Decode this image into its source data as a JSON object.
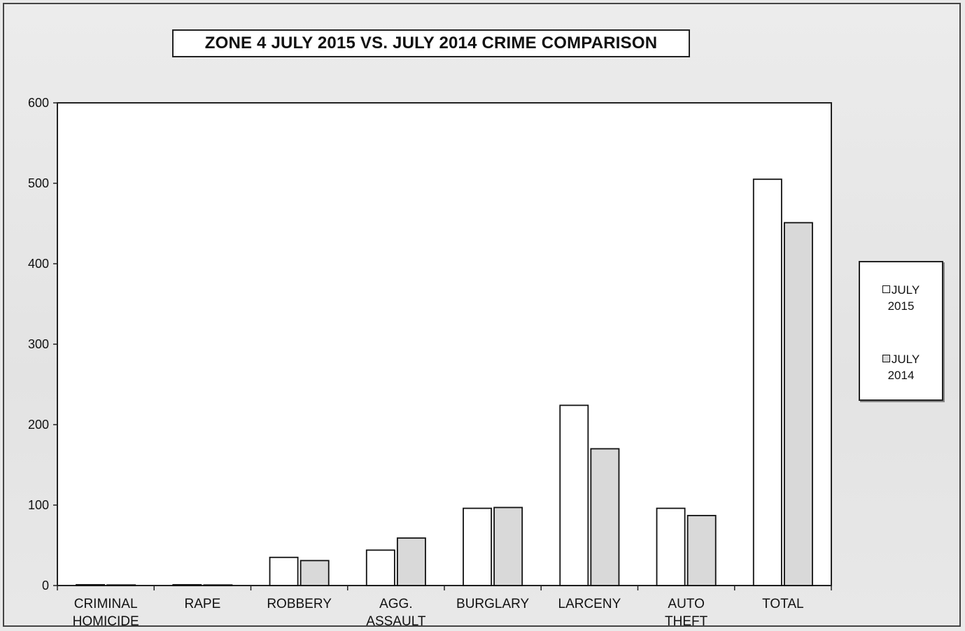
{
  "chart_data": {
    "type": "bar",
    "title": "ZONE 4  JULY 2015 VS. JULY 2014 CRIME COMPARISON",
    "categories": [
      [
        "CRIMINAL",
        "HOMICIDE"
      ],
      [
        "RAPE"
      ],
      [
        "ROBBERY"
      ],
      [
        "AGG.",
        "ASSAULT"
      ],
      [
        "BURGLARY"
      ],
      [
        "LARCENY"
      ],
      [
        "AUTO",
        "THEFT"
      ],
      [
        "TOTAL"
      ]
    ],
    "series": [
      {
        "name": "JULY 2015",
        "legend_lines": [
          "JULY",
          "2015"
        ],
        "color": "#ffffff",
        "values": [
          1,
          1,
          35,
          44,
          96,
          224,
          96,
          505
        ]
      },
      {
        "name": "JULY 2014",
        "legend_lines": [
          "JULY",
          "2014"
        ],
        "color": "#d9d9d9",
        "values": [
          0,
          0,
          31,
          59,
          97,
          170,
          87,
          451
        ]
      }
    ],
    "ylim": [
      0,
      600
    ],
    "yticks": [
      0,
      100,
      200,
      300,
      400,
      500,
      600
    ],
    "legend_position": "right",
    "grid": false,
    "xlabel": "",
    "ylabel": ""
  }
}
